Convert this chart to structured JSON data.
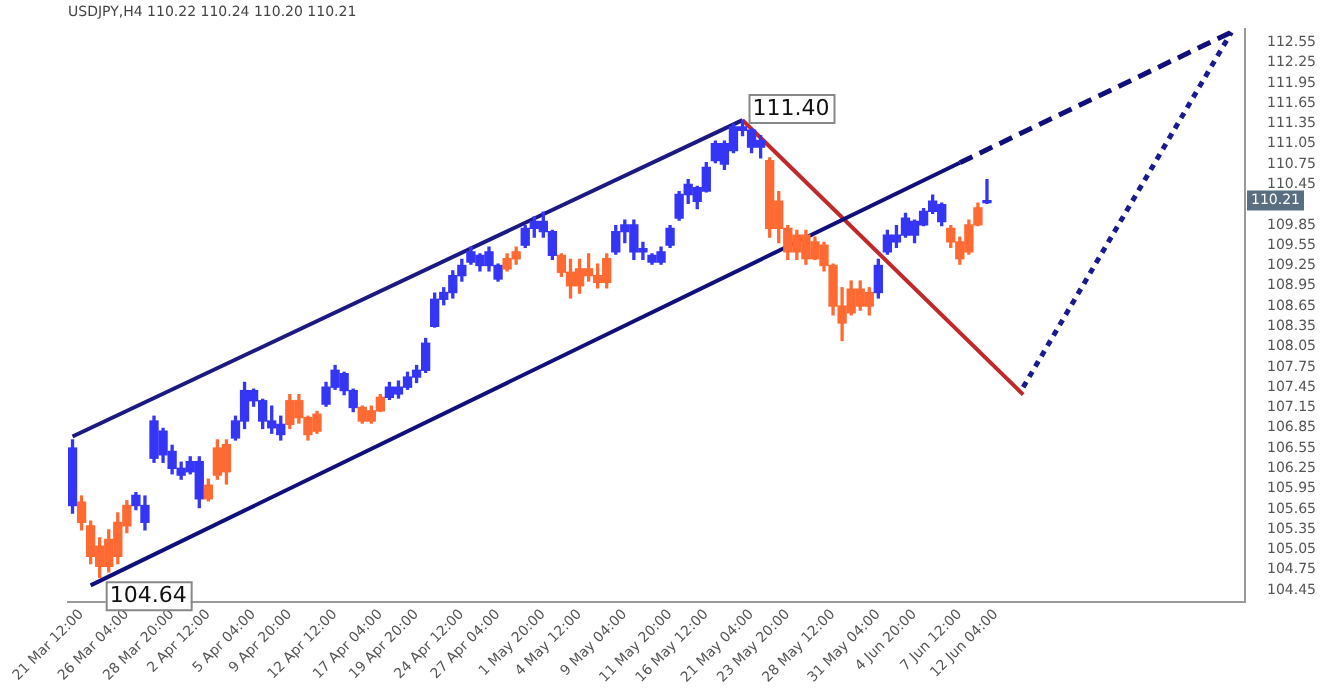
{
  "chart_data": {
    "type": "candlestick",
    "title": "USDJPY,H4 110.22 110.24 110.20 110.21",
    "categories": [
      null,
      "21 Mar 12:00",
      null,
      null,
      null,
      null,
      "26 Mar 04:00",
      null,
      null,
      null,
      null,
      "28 Mar 20:00",
      null,
      null,
      null,
      "2 Apr 12:00",
      null,
      null,
      null,
      null,
      "5 Apr 04:00",
      null,
      null,
      null,
      "9 Apr 20:00",
      null,
      null,
      null,
      null,
      "12 Apr 12:00",
      null,
      null,
      null,
      null,
      "17 Apr 04:00",
      null,
      null,
      null,
      "19 Apr 20:00",
      null,
      null,
      null,
      null,
      "24 Apr 12:00",
      null,
      null,
      null,
      "27 Apr 04:00",
      null,
      null,
      null,
      null,
      "1 May 20:00",
      null,
      null,
      null,
      "4 May 12:00",
      null,
      null,
      null,
      null,
      "9 May 04:00",
      null,
      null,
      null,
      null,
      "11 May 20:00",
      null,
      null,
      null,
      "16 May 12:00",
      null,
      null,
      null,
      null,
      "21 May 04:00",
      null,
      null,
      null,
      "23 May 20:00",
      null,
      null,
      null,
      null,
      "28 May 12:00",
      null,
      null,
      null,
      null,
      "31 May 04:00",
      null,
      null,
      null,
      "4 Jun 20:00",
      null,
      null,
      null,
      null,
      "7 Jun 12:00",
      null,
      null,
      null,
      "12 Jun 04:00",
      null,
      null,
      null,
      null,
      null,
      null,
      null,
      null,
      null,
      null,
      null,
      null,
      null,
      null,
      null,
      null,
      null,
      null,
      null,
      null,
      null,
      null,
      null,
      null,
      null,
      null,
      null
    ],
    "ohlc": [
      [
        105.7,
        106.67,
        105.59,
        106.55
      ],
      [
        105.75,
        105.84,
        105.34,
        105.45
      ],
      [
        105.4,
        105.47,
        104.84,
        104.95
      ],
      [
        105.1,
        105.22,
        104.64,
        104.8
      ],
      [
        105.2,
        105.34,
        104.72,
        104.8
      ],
      [
        105.45,
        105.59,
        104.84,
        104.95
      ],
      [
        105.7,
        105.77,
        105.3,
        105.4
      ],
      [
        105.7,
        105.89,
        105.64,
        105.85
      ],
      [
        105.45,
        105.84,
        105.34,
        105.7
      ],
      [
        106.4,
        107.02,
        106.34,
        106.95
      ],
      [
        106.45,
        106.84,
        106.34,
        106.8
      ],
      [
        106.25,
        106.59,
        106.17,
        106.5
      ],
      [
        106.15,
        106.34,
        106.09,
        106.25
      ],
      [
        106.2,
        106.42,
        106.17,
        106.35
      ],
      [
        105.8,
        106.42,
        105.67,
        106.35
      ],
      [
        106.0,
        106.09,
        105.77,
        105.8
      ],
      [
        106.55,
        106.67,
        106.09,
        106.15
      ],
      [
        106.6,
        106.67,
        106.02,
        106.2
      ],
      [
        106.7,
        107.02,
        106.67,
        106.95
      ],
      [
        106.95,
        107.52,
        106.84,
        107.4
      ],
      [
        107.25,
        107.42,
        107.17,
        107.4
      ],
      [
        106.95,
        107.27,
        106.84,
        107.25
      ],
      [
        106.85,
        107.17,
        106.77,
        106.95
      ],
      [
        106.75,
        107.02,
        106.67,
        106.9
      ],
      [
        107.25,
        107.34,
        106.84,
        106.9
      ],
      [
        107.25,
        107.34,
        106.92,
        107.0
      ],
      [
        107.0,
        107.02,
        106.67,
        106.75
      ],
      [
        107.05,
        107.09,
        106.77,
        106.8
      ],
      [
        107.2,
        107.52,
        107.17,
        107.45
      ],
      [
        107.45,
        107.77,
        107.42,
        107.7
      ],
      [
        107.4,
        107.67,
        107.34,
        107.65
      ],
      [
        107.15,
        107.42,
        107.09,
        107.4
      ],
      [
        107.15,
        107.17,
        106.92,
        106.95
      ],
      [
        107.1,
        107.17,
        106.92,
        106.95
      ],
      [
        107.3,
        107.34,
        107.09,
        107.1
      ],
      [
        107.3,
        107.52,
        107.27,
        107.45
      ],
      [
        107.35,
        107.54,
        107.29,
        107.45
      ],
      [
        107.45,
        107.67,
        107.42,
        107.6
      ],
      [
        107.6,
        107.77,
        107.52,
        107.7
      ],
      [
        107.7,
        108.17,
        107.67,
        108.1
      ],
      [
        108.35,
        108.84,
        108.34,
        108.75
      ],
      [
        108.75,
        108.92,
        108.67,
        108.85
      ],
      [
        108.85,
        109.17,
        108.77,
        109.1
      ],
      [
        109.1,
        109.34,
        109.02,
        109.25
      ],
      [
        109.3,
        109.52,
        109.27,
        109.45
      ],
      [
        109.25,
        109.42,
        109.17,
        109.4
      ],
      [
        109.25,
        109.52,
        109.17,
        109.45
      ],
      [
        109.05,
        109.27,
        109.02,
        109.25
      ],
      [
        109.35,
        109.42,
        109.17,
        109.2
      ],
      [
        109.45,
        109.52,
        109.27,
        109.35
      ],
      [
        109.55,
        109.84,
        109.52,
        109.8
      ],
      [
        109.8,
        109.97,
        109.67,
        109.9
      ],
      [
        109.75,
        110.04,
        109.67,
        109.9
      ],
      [
        109.4,
        109.77,
        109.34,
        109.75
      ],
      [
        109.4,
        109.42,
        109.09,
        109.15
      ],
      [
        109.15,
        109.34,
        108.77,
        108.95
      ],
      [
        109.2,
        109.34,
        108.84,
        108.95
      ],
      [
        109.2,
        109.42,
        109.02,
        109.1
      ],
      [
        109.1,
        109.27,
        108.92,
        109.0
      ],
      [
        109.35,
        109.42,
        108.92,
        109.0
      ],
      [
        109.45,
        109.84,
        109.42,
        109.75
      ],
      [
        109.75,
        109.92,
        109.59,
        109.85
      ],
      [
        109.45,
        109.92,
        109.34,
        109.85
      ],
      [
        109.45,
        109.59,
        109.34,
        109.5
      ],
      [
        109.3,
        109.42,
        109.27,
        109.4
      ],
      [
        109.3,
        109.52,
        109.27,
        109.45
      ],
      [
        109.55,
        109.84,
        109.52,
        109.8
      ],
      [
        109.95,
        110.34,
        109.92,
        110.3
      ],
      [
        110.3,
        110.52,
        110.17,
        110.45
      ],
      [
        110.2,
        110.42,
        110.09,
        110.4
      ],
      [
        110.35,
        110.77,
        110.34,
        110.7
      ],
      [
        110.8,
        111.09,
        110.77,
        111.05
      ],
      [
        110.75,
        111.09,
        110.67,
        111.05
      ],
      [
        110.95,
        111.34,
        110.92,
        111.3
      ],
      [
        111.25,
        111.4,
        111.17,
        111.3
      ],
      [
        111.0,
        111.27,
        110.92,
        111.25
      ],
      [
        111.0,
        111.17,
        110.84,
        111.1
      ],
      [
        110.8,
        110.84,
        109.67,
        109.8
      ],
      [
        110.2,
        110.34,
        109.59,
        109.8
      ],
      [
        109.8,
        109.84,
        109.34,
        109.45
      ],
      [
        109.7,
        109.77,
        109.34,
        109.45
      ],
      [
        109.7,
        109.77,
        109.27,
        109.35
      ],
      [
        109.6,
        109.67,
        109.34,
        109.35
      ],
      [
        109.55,
        109.59,
        109.17,
        109.25
      ],
      [
        109.25,
        109.27,
        108.52,
        108.65
      ],
      [
        108.65,
        108.92,
        108.14,
        108.4
      ],
      [
        108.9,
        109.02,
        108.52,
        108.55
      ],
      [
        108.9,
        109.02,
        108.59,
        108.65
      ],
      [
        108.85,
        108.92,
        108.52,
        108.65
      ],
      [
        108.85,
        109.34,
        108.77,
        109.25
      ],
      [
        109.45,
        109.77,
        109.42,
        109.7
      ],
      [
        109.6,
        109.84,
        109.52,
        109.7
      ],
      [
        109.7,
        110.02,
        109.67,
        109.95
      ],
      [
        109.7,
        109.92,
        109.59,
        109.9
      ],
      [
        109.85,
        110.09,
        109.84,
        110.05
      ],
      [
        110.05,
        110.29,
        110.02,
        110.2
      ],
      [
        109.9,
        110.17,
        109.84,
        110.15
      ],
      [
        109.8,
        109.84,
        109.52,
        109.6
      ],
      [
        109.6,
        109.67,
        109.27,
        109.35
      ],
      [
        109.85,
        109.92,
        109.42,
        109.45
      ],
      [
        110.1,
        110.17,
        109.84,
        109.85
      ],
      [
        110.18,
        110.52,
        110.17,
        110.21
      ],
      null,
      null,
      null,
      null,
      null,
      null,
      null,
      null,
      null,
      null,
      null,
      null,
      null,
      null,
      null,
      null,
      null,
      null,
      null,
      null,
      null,
      null,
      null,
      null,
      null,
      null,
      null,
      null
    ],
    "colors": [
      "#3535f5",
      "#ff6a33",
      "#ff6a33",
      "#ff6a33",
      "#ff6a33",
      "#ff6a33",
      "#ff6a33",
      "#3535f5",
      "#3535f5",
      "#3535f5",
      "#3535f5",
      "#3535f5",
      "#3535f5",
      "#3535f5",
      "#3535f5",
      "#ff6a33",
      "#ff6a33",
      "#ff6a33",
      "#3535f5",
      "#3535f5",
      "#3535f5",
      "#3535f5",
      "#3535f5",
      "#3535f5",
      "#ff6a33",
      "#ff6a33",
      "#ff6a33",
      "#ff6a33",
      "#3535f5",
      "#3535f5",
      "#3535f5",
      "#3535f5",
      "#ff6a33",
      "#ff6a33",
      "#ff6a33",
      "#3535f5",
      "#3535f5",
      "#3535f5",
      "#3535f5",
      "#3535f5",
      "#3535f5",
      "#3535f5",
      "#3535f5",
      "#3535f5",
      "#3535f5",
      "#3535f5",
      "#3535f5",
      "#3535f5",
      "#ff6a33",
      "#ff6a33",
      "#3535f5",
      "#3535f5",
      "#3535f5",
      "#3535f5",
      "#ff6a33",
      "#ff6a33",
      "#ff6a33",
      "#ff6a33",
      "#ff6a33",
      "#ff6a33",
      "#3535f5",
      "#3535f5",
      "#3535f5",
      "#3535f5",
      "#3535f5",
      "#3535f5",
      "#3535f5",
      "#3535f5",
      "#3535f5",
      "#3535f5",
      "#3535f5",
      "#3535f5",
      "#3535f5",
      "#3535f5",
      "#3535f5",
      "#3535f5",
      "#3535f5",
      "#ff6a33",
      "#ff6a33",
      "#ff6a33",
      "#ff6a33",
      "#ff6a33",
      "#ff6a33",
      "#ff6a33",
      "#ff6a33",
      "#ff6a33",
      "#ff6a33",
      "#ff6a33",
      "#ff6a33",
      "#3535f5",
      "#3535f5",
      "#3535f5",
      "#3535f5",
      "#3535f5",
      "#3535f5",
      "#3535f5",
      "#3535f5",
      "#ff6a33",
      "#ff6a33",
      "#ff6a33",
      "#ff6a33",
      "#3535f5",
      null,
      null,
      null,
      null,
      null,
      null,
      null,
      null,
      null,
      null,
      null,
      null,
      null,
      null,
      null,
      null,
      null,
      null,
      null,
      null,
      null,
      null,
      null,
      null,
      null,
      null,
      null,
      null
    ],
    "series": [
      {
        "type": "line",
        "color": "#1a1a80",
        "line_style": "solid",
        "values": [
          106.72,
          null,
          null,
          null,
          null,
          null,
          null,
          null,
          null,
          null,
          null,
          null,
          null,
          null,
          null,
          null,
          null,
          null,
          null,
          null,
          null,
          null,
          null,
          null,
          null,
          null,
          null,
          null,
          null,
          null,
          null,
          null,
          null,
          null,
          null,
          null,
          null,
          null,
          null,
          null,
          null,
          null,
          null,
          null,
          null,
          null,
          null,
          null,
          null,
          null,
          null,
          null,
          null,
          null,
          null,
          null,
          null,
          null,
          null,
          null,
          null,
          null,
          null,
          null,
          null,
          null,
          null,
          null,
          null,
          null,
          null,
          null,
          null,
          null,
          111.4,
          null,
          null,
          null,
          null,
          null,
          null,
          null,
          null,
          null,
          null,
          null,
          null,
          null,
          null,
          null,
          null,
          null,
          null,
          null,
          null,
          null,
          null,
          null,
          null,
          null,
          null,
          null,
          null,
          null,
          null,
          null,
          null,
          null,
          null,
          null,
          null,
          null,
          null,
          null,
          null,
          null,
          null,
          null,
          null,
          null,
          null,
          null,
          null,
          null,
          null,
          null,
          null,
          null,
          null,
          null
        ]
      },
      {
        "type": "line",
        "color": "#10107a",
        "line_style": "solid",
        "values": [
          null,
          null,
          104.52,
          null,
          null,
          null,
          null,
          null,
          null,
          null,
          null,
          null,
          null,
          null,
          null,
          null,
          null,
          null,
          null,
          null,
          null,
          null,
          null,
          null,
          null,
          null,
          null,
          null,
          null,
          null,
          null,
          null,
          null,
          null,
          null,
          null,
          null,
          null,
          null,
          null,
          null,
          null,
          null,
          null,
          null,
          null,
          null,
          null,
          null,
          null,
          null,
          null,
          null,
          null,
          null,
          null,
          null,
          null,
          null,
          null,
          null,
          null,
          null,
          null,
          null,
          null,
          null,
          null,
          null,
          null,
          null,
          null,
          null,
          null,
          null,
          null,
          null,
          null,
          null,
          null,
          null,
          null,
          null,
          null,
          null,
          null,
          null,
          null,
          null,
          null,
          null,
          null,
          null,
          null,
          null,
          null,
          null,
          null,
          110.77,
          null,
          null,
          null,
          null,
          null,
          null,
          null,
          null,
          null,
          null,
          null,
          null,
          null,
          null,
          null,
          null,
          null,
          null,
          null,
          null,
          null,
          null,
          null,
          null,
          null,
          null,
          null,
          null,
          null,
          null,
          null
        ]
      },
      {
        "type": "line",
        "color": "#10107a",
        "line_style": "dashed",
        "values": [
          null,
          null,
          null,
          null,
          null,
          null,
          null,
          null,
          null,
          null,
          null,
          null,
          null,
          null,
          null,
          null,
          null,
          null,
          null,
          null,
          null,
          null,
          null,
          null,
          null,
          null,
          null,
          null,
          null,
          null,
          null,
          null,
          null,
          null,
          null,
          null,
          null,
          null,
          null,
          null,
          null,
          null,
          null,
          null,
          null,
          null,
          null,
          null,
          null,
          null,
          null,
          null,
          null,
          null,
          null,
          null,
          null,
          null,
          null,
          null,
          null,
          null,
          null,
          null,
          null,
          null,
          null,
          null,
          null,
          null,
          null,
          null,
          null,
          null,
          null,
          null,
          null,
          null,
          null,
          null,
          null,
          null,
          null,
          null,
          null,
          null,
          null,
          null,
          null,
          null,
          null,
          null,
          null,
          null,
          null,
          null,
          null,
          null,
          110.77,
          null,
          null,
          null,
          null,
          null,
          null,
          null,
          null,
          null,
          null,
          null,
          null,
          null,
          null,
          null,
          null,
          null,
          null,
          null,
          null,
          null,
          null,
          null,
          null,
          null,
          null,
          null,
          null,
          null,
          112.7,
          null
        ]
      },
      {
        "type": "line",
        "color": "#c0282a",
        "line_style": "solid",
        "values": [
          null,
          null,
          null,
          null,
          null,
          null,
          null,
          null,
          null,
          null,
          null,
          null,
          null,
          null,
          null,
          null,
          null,
          null,
          null,
          null,
          null,
          null,
          null,
          null,
          null,
          null,
          null,
          null,
          null,
          null,
          null,
          null,
          null,
          null,
          null,
          null,
          null,
          null,
          null,
          null,
          null,
          null,
          null,
          null,
          null,
          null,
          null,
          null,
          null,
          null,
          null,
          null,
          null,
          null,
          null,
          null,
          null,
          null,
          null,
          null,
          null,
          null,
          null,
          null,
          null,
          null,
          null,
          null,
          null,
          null,
          null,
          null,
          null,
          null,
          111.4,
          null,
          null,
          null,
          null,
          null,
          null,
          null,
          null,
          null,
          null,
          null,
          null,
          null,
          null,
          null,
          null,
          null,
          null,
          null,
          null,
          null,
          null,
          null,
          null,
          null,
          null,
          null,
          null,
          null,
          null,
          107.34,
          null,
          null,
          null,
          null,
          null,
          null,
          null,
          null,
          null,
          null,
          null,
          null,
          null,
          null,
          null,
          null,
          null,
          null,
          null,
          null,
          null,
          null,
          null,
          null
        ]
      },
      {
        "type": "line",
        "color": "#1a1a90",
        "line_style": "dotted",
        "values": [
          null,
          null,
          null,
          null,
          null,
          null,
          null,
          null,
          null,
          null,
          null,
          null,
          null,
          null,
          null,
          null,
          null,
          null,
          null,
          null,
          null,
          null,
          null,
          null,
          null,
          null,
          null,
          null,
          null,
          null,
          null,
          null,
          null,
          null,
          null,
          null,
          null,
          null,
          null,
          null,
          null,
          null,
          null,
          null,
          null,
          null,
          null,
          null,
          null,
          null,
          null,
          null,
          null,
          null,
          null,
          null,
          null,
          null,
          null,
          null,
          null,
          null,
          null,
          null,
          null,
          null,
          null,
          null,
          null,
          null,
          null,
          null,
          null,
          null,
          null,
          null,
          null,
          null,
          null,
          null,
          null,
          null,
          null,
          null,
          null,
          null,
          null,
          null,
          null,
          null,
          null,
          null,
          null,
          null,
          null,
          null,
          null,
          null,
          null,
          null,
          null,
          null,
          null,
          null,
          null,
          107.45,
          null,
          null,
          null,
          null,
          null,
          null,
          null,
          null,
          null,
          null,
          null,
          null,
          null,
          null,
          null,
          null,
          null,
          null,
          null,
          null,
          null,
          null,
          112.7,
          null
        ]
      }
    ],
    "ylim": [
      104.27,
      112.75
    ],
    "yticks": [
      104.45,
      104.75,
      105.05,
      105.35,
      105.65,
      105.95,
      106.25,
      106.55,
      106.85,
      107.15,
      107.45,
      107.75,
      108.05,
      108.35,
      108.65,
      108.95,
      109.25,
      109.55,
      109.85,
      110.45,
      110.75,
      111.05,
      111.35,
      111.65,
      111.95,
      112.25,
      112.55
    ],
    "annotations": [
      "111.40",
      "104.64",
      {
        "text": "110.21",
        "y": 110.21
      }
    ],
    "grid": false,
    "legend": false
  }
}
